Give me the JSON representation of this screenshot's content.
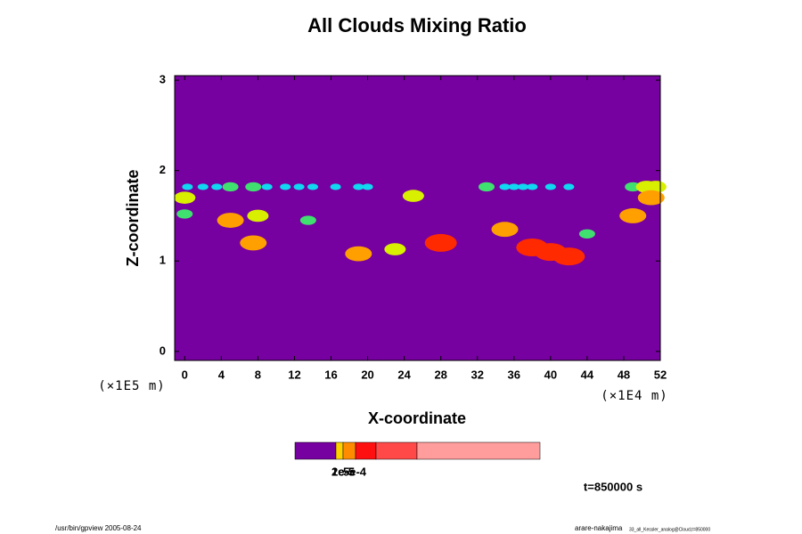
{
  "chart_data": {
    "type": "contour",
    "title": "All Clouds Mixing Ratio",
    "x_label": "X-coordinate",
    "y_label": "Z-coordinate",
    "x_unit": "(×1E4 m)",
    "y_unit": "(×1E5 m)",
    "xlim": [
      -1.1,
      52
    ],
    "ylim": [
      -0.1,
      3.05
    ],
    "xticks": [
      0,
      4,
      8,
      12,
      16,
      20,
      24,
      28,
      32,
      36,
      40,
      44,
      48,
      52
    ],
    "yticks": [
      0,
      1,
      2,
      3
    ],
    "background_color": "#7700a0",
    "levels": [
      2e-06,
      5e-06,
      1e-05,
      2e-05,
      5e-05
    ],
    "level_colors": [
      "#2a3cff",
      "#10d8f0",
      "#40e070",
      "#d8f000",
      "#ffa000",
      "#ff2a00"
    ],
    "x": [
      0.3,
      2,
      3.5,
      5,
      7.5,
      9,
      11,
      12.5,
      14,
      16.5,
      19,
      20,
      33,
      35,
      36,
      37,
      38,
      40,
      42,
      49,
      50.5,
      51.5,
      0,
      0,
      5,
      8,
      7.5,
      13.5,
      19,
      23,
      28,
      25,
      35,
      38,
      40,
      42,
      49,
      51,
      44
    ],
    "y": [
      1.82,
      1.82,
      1.82,
      1.82,
      1.82,
      1.82,
      1.82,
      1.82,
      1.82,
      1.82,
      1.82,
      1.82,
      1.82,
      1.82,
      1.82,
      1.82,
      1.82,
      1.82,
      1.82,
      1.82,
      1.82,
      1.82,
      1.7,
      1.52,
      1.45,
      1.5,
      1.2,
      1.45,
      1.08,
      1.13,
      1.2,
      1.72,
      1.35,
      1.15,
      1.1,
      1.05,
      1.5,
      1.7,
      1.3
    ],
    "values": [
      3e-06,
      3e-06,
      3e-06,
      6e-06,
      6e-06,
      3e-06,
      3e-06,
      3e-06,
      3e-06,
      3e-06,
      3e-06,
      3e-06,
      6e-06,
      3e-06,
      3e-06,
      3e-06,
      3e-06,
      3e-06,
      3e-06,
      6e-06,
      1.2e-05,
      1.2e-05,
      1.2e-05,
      6e-06,
      2.5e-05,
      1.2e-05,
      2.5e-05,
      6e-06,
      2.5e-05,
      1.2e-05,
      6e-05,
      1.2e-05,
      2.5e-05,
      6e-05,
      6e-05,
      6e-05,
      2.5e-05,
      2.5e-05,
      6e-06
    ],
    "colorbar": {
      "colors": [
        "#7700a0",
        "#ffd000",
        "#ff8c00",
        "#ff1010",
        "#ff4848",
        "#ff9c9c"
      ],
      "ticks": [
        {
          "value": 1e-05,
          "label": "1e-5"
        },
        {
          "value": 2e-05,
          "label": "2e-5"
        },
        {
          "value": 0.0005,
          "label": "5e-4"
        }
      ]
    },
    "time_label": "t=850000 s",
    "footer_left": "/usr/bin/gpview 2005-08-24",
    "footer_right": "arare-nakajima",
    "footer_right_small": "33_all_Kessler_analog@Cloud,t=850000"
  }
}
